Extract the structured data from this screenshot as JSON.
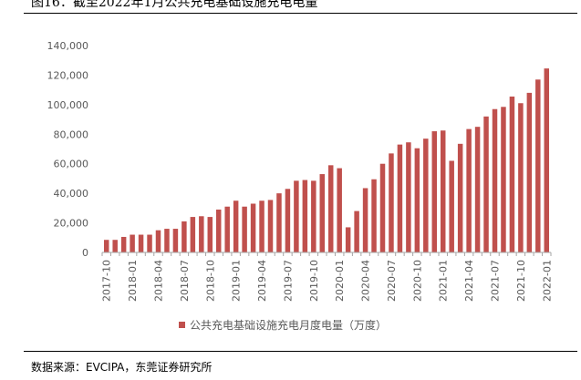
{
  "figure_title": "图16：截至2022年1月公共充电基础设施充电电量",
  "source": "数据来源：EVCIPA，东莞证券研究所",
  "chart_data": {
    "type": "bar",
    "title": "",
    "xlabel": "",
    "ylabel": "",
    "ylim": [
      0,
      140000
    ],
    "yticks": [
      0,
      20000,
      40000,
      60000,
      80000,
      100000,
      120000,
      140000
    ],
    "ytick_labels": [
      "0",
      "20,000",
      "40,000",
      "60,000",
      "80,000",
      "100,000",
      "120,000",
      "140,000"
    ],
    "grid": false,
    "legend_position": "bottom",
    "categories": [
      "2017-10",
      "2017-11",
      "2017-12",
      "2018-01",
      "2018-02",
      "2018-03",
      "2018-04",
      "2018-05",
      "2018-06",
      "2018-07",
      "2018-08",
      "2018-09",
      "2018-10",
      "2018-11",
      "2018-12",
      "2019-01",
      "2019-02",
      "2019-03",
      "2019-04",
      "2019-05",
      "2019-06",
      "2019-07",
      "2019-08",
      "2019-09",
      "2019-10",
      "2019-11",
      "2019-12",
      "2020-01",
      "2020-02",
      "2020-03",
      "2020-04",
      "2020-05",
      "2020-06",
      "2020-07",
      "2020-08",
      "2020-09",
      "2020-10",
      "2020-11",
      "2020-12",
      "2021-01",
      "2021-02",
      "2021-03",
      "2021-04",
      "2021-05",
      "2021-06",
      "2021-07",
      "2021-08",
      "2021-09",
      "2021-10",
      "2021-11",
      "2021-12",
      "2022-01"
    ],
    "xtick_labels": [
      "2017-10",
      "2018-01",
      "2018-04",
      "2018-07",
      "2018-10",
      "2019-01",
      "2019-04",
      "2019-07",
      "2019-10",
      "2020-01",
      "2020-04",
      "2020-07",
      "2020-10",
      "2021-01",
      "2021-04",
      "2021-07",
      "2021-10",
      "2022-01"
    ],
    "series": [
      {
        "name": "公共充电基础设施充电月度电量（万度）",
        "color": "#C0504D",
        "values": [
          8500,
          8500,
          10500,
          12000,
          12000,
          12000,
          15000,
          16000,
          16000,
          21000,
          24000,
          24500,
          24000,
          29000,
          31000,
          35000,
          31000,
          33000,
          35000,
          35500,
          40000,
          43000,
          48500,
          49000,
          48500,
          53000,
          59000,
          57000,
          17000,
          28000,
          43500,
          49500,
          60000,
          67000,
          73000,
          74500,
          70500,
          77000,
          82000,
          82500,
          62000,
          73500,
          83500,
          85000,
          92000,
          97000,
          98500,
          105500,
          101000,
          108000,
          117000,
          124500
        ]
      }
    ]
  }
}
